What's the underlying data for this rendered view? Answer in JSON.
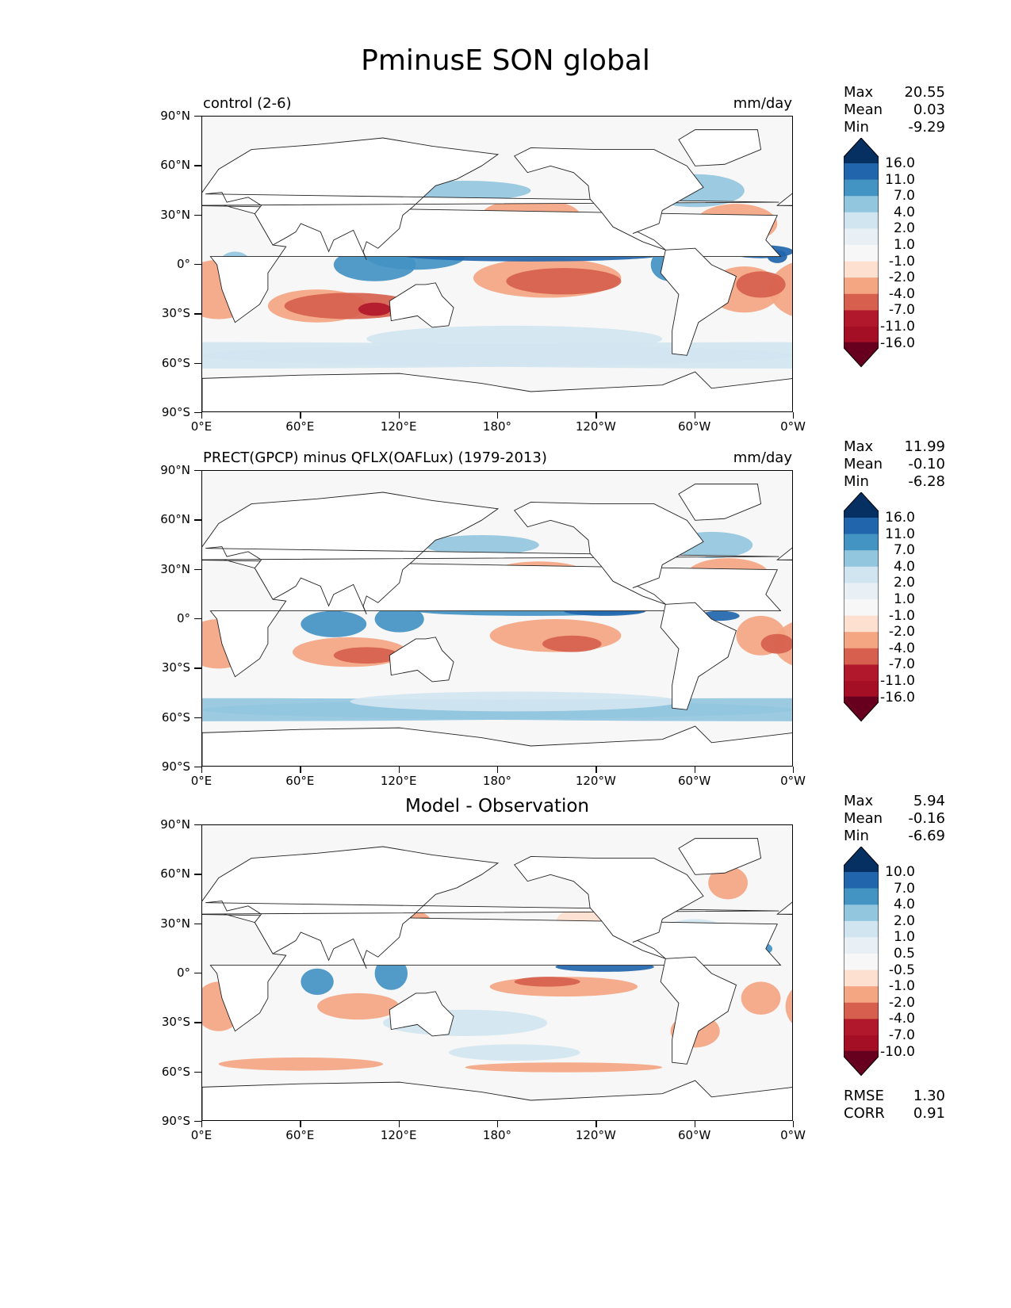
{
  "figure": {
    "title": "PminusE SON global"
  },
  "axes": {
    "x_ticks": [
      "0°E",
      "60°E",
      "120°E",
      "180°",
      "120°W",
      "60°W",
      "0°W"
    ],
    "y_ticks": [
      "90°N",
      "60°N",
      "30°N",
      "0°",
      "30°S",
      "60°S",
      "90°S"
    ]
  },
  "panels": [
    {
      "id": "control",
      "left_title": "control (2-6)",
      "center_title": "",
      "units": "mm/day",
      "stats": [
        {
          "label": "Max",
          "value": "20.55"
        },
        {
          "label": "Mean",
          "value": "0.03"
        },
        {
          "label": "Min",
          "value": "-9.29"
        }
      ],
      "colorbar_levels": [
        "16.0",
        "11.0",
        "7.0",
        "4.0",
        "2.0",
        "1.0",
        "-1.0",
        "-2.0",
        "-4.0",
        "-7.0",
        "-11.0",
        "-16.0"
      ],
      "extra_stats": []
    },
    {
      "id": "observation",
      "left_title": "PRECT(GPCP) minus QFLX(OAFLux) (1979-2013)",
      "center_title": "",
      "units": "mm/day",
      "stats": [
        {
          "label": "Max",
          "value": "11.99"
        },
        {
          "label": "Mean",
          "value": "-0.10"
        },
        {
          "label": "Min",
          "value": "-6.28"
        }
      ],
      "colorbar_levels": [
        "16.0",
        "11.0",
        "7.0",
        "4.0",
        "2.0",
        "1.0",
        "-1.0",
        "-2.0",
        "-4.0",
        "-7.0",
        "-11.0",
        "-16.0"
      ],
      "extra_stats": []
    },
    {
      "id": "difference",
      "left_title": "",
      "center_title": "Model - Observation",
      "units": "",
      "stats": [
        {
          "label": "Max",
          "value": "5.94"
        },
        {
          "label": "Mean",
          "value": "-0.16"
        },
        {
          "label": "Min",
          "value": "-6.69"
        }
      ],
      "colorbar_levels": [
        "10.0",
        "7.0",
        "4.0",
        "2.0",
        "1.0",
        "0.5",
        "-0.5",
        "-1.0",
        "-2.0",
        "-4.0",
        "-7.0",
        "-10.0"
      ],
      "extra_stats": [
        {
          "label": "RMSE",
          "value": "1.30"
        },
        {
          "label": "CORR",
          "value": "0.91"
        }
      ]
    }
  ],
  "colors": {
    "colorbar": [
      "#053061",
      "#2166ac",
      "#4393c3",
      "#92c5de",
      "#d1e5f0",
      "#e8f0f5",
      "#f7f7f7",
      "#fde0d0",
      "#f4a582",
      "#d6604d",
      "#b2182b",
      "#a50f26",
      "#67001f"
    ],
    "ocean_neutral": "#f7f7f7",
    "land": "#ffffff"
  }
}
